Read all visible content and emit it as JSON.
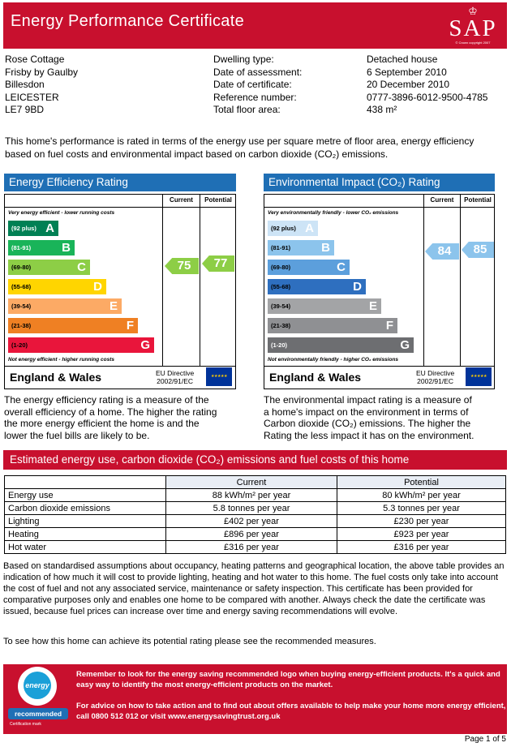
{
  "header": {
    "title": "Energy Performance Certificate",
    "logo_word": "SAP",
    "logo_copyright": "© Crown copyright 2007"
  },
  "address": [
    "Rose Cottage",
    "Frisby by Gaulby",
    "Billesdon",
    "LEICESTER",
    "LE7 9BD"
  ],
  "details": [
    {
      "label": "Dwelling type:",
      "value": "Detached house"
    },
    {
      "label": "Date of assessment:",
      "value": "6 September 2010"
    },
    {
      "label": "Date of certificate:",
      "value": "20 December 2010"
    },
    {
      "label": "Reference number:",
      "value": "0777-3896-6012-9500-4785"
    },
    {
      "label": "Total floor area:",
      "value": "438 m²"
    }
  ],
  "intro": "This home's performance is rated in terms of the energy use per square metre of floor area, energy efficiency based on fuel costs and environmental impact based on carbon dioxide (CO₂) emissions.",
  "efficiency": {
    "title": "Energy Efficiency Rating",
    "col_current": "Current",
    "col_potential": "Potential",
    "top_note": "Very energy efficient - lower running costs",
    "bottom_note": "Not energy efficient - higher running costs",
    "bands": [
      {
        "range": "(92 plus)",
        "letter": "A",
        "color": "#008054"
      },
      {
        "range": "(81-91)",
        "letter": "B",
        "color": "#19b459"
      },
      {
        "range": "(69-80)",
        "letter": "C",
        "color": "#8dce46"
      },
      {
        "range": "(55-68)",
        "letter": "D",
        "color": "#ffd500"
      },
      {
        "range": "(39-54)",
        "letter": "E",
        "color": "#fcaa65"
      },
      {
        "range": "(21-38)",
        "letter": "F",
        "color": "#ef8023"
      },
      {
        "range": "(1-20)",
        "letter": "G",
        "color": "#e9153b"
      }
    ],
    "current": "75",
    "potential": "77",
    "arrow_color": "#8dce46",
    "region": "England & Wales",
    "directive": [
      "EU Directive",
      "2002/91/EC"
    ],
    "description": [
      "The energy efficiency rating is a measure of the",
      "overall efficiency of a home. The higher the rating",
      "the more energy efficient the home is and the",
      "lower the fuel bills are likely to be."
    ]
  },
  "environmental": {
    "title": "Environmental Impact (CO₂) Rating",
    "col_current": "Current",
    "col_potential": "Potential",
    "top_note": "Very environmentally friendly - lower CO₂ emissions",
    "bottom_note": "Not environmentally friendly - higher CO₂ emissions",
    "bands": [
      {
        "range": "(92 plus)",
        "letter": "A",
        "color": "#cde4f6"
      },
      {
        "range": "(81-91)",
        "letter": "B",
        "color": "#8cc4ec"
      },
      {
        "range": "(69-80)",
        "letter": "C",
        "color": "#5c9fdc"
      },
      {
        "range": "(55-68)",
        "letter": "D",
        "color": "#2e6fbf"
      },
      {
        "range": "(39-54)",
        "letter": "E",
        "color": "#a3a4a6"
      },
      {
        "range": "(21-38)",
        "letter": "F",
        "color": "#8f9093"
      },
      {
        "range": "(1-20)",
        "letter": "G",
        "color": "#6d6e71"
      }
    ],
    "current": "84",
    "potential": "85",
    "arrow_color": "#8cc4ec",
    "region": "England & Wales",
    "directive": [
      "EU Directive",
      "2002/91/EC"
    ],
    "description": [
      "The environmental impact rating is a measure of",
      "a home's impact on the environment in terms of",
      "Carbon dioxide (CO₂) emissions. The higher the",
      "Rating the less impact it has on the environment."
    ]
  },
  "estimates": {
    "title": "Estimated energy use, carbon dioxide (CO₂) emissions and fuel costs of this home",
    "col_current": "Current",
    "col_potential": "Potential",
    "rows": [
      {
        "label": "Energy use",
        "current": "88 kWh/m² per year",
        "potential": "80 kWh/m² per year"
      },
      {
        "label": "Carbon dioxide emissions",
        "current": "5.8 tonnes per year",
        "potential": "5.3 tonnes per year"
      },
      {
        "label": "Lighting",
        "current": "£402 per year",
        "potential": "£230 per year"
      },
      {
        "label": "Heating",
        "current": "£896 per year",
        "potential": "£923 per year"
      },
      {
        "label": "Hot water",
        "current": "£316 per year",
        "potential": "£316 per year"
      }
    ]
  },
  "assumptions": "Based on standardised assumptions about occupancy, heating patterns and geographical location, the above table provides an indication of how much it will cost to provide lighting, heating and hot water to this home. The fuel costs only take into account the cost of fuel and not any associated service, maintenance or safety inspection. This certificate has been provided for comparative purposes only and enables one home to be compared with another. Always check the date the certificate was issued, because fuel prices can increase over time and energy saving recommendations will evolve.",
  "advice": "To see how this home can achieve its potential rating please see the recommended measures.",
  "footer": {
    "logo_text": "energy saving",
    "logo_label": "recommended",
    "logo_caption": "Certification mark",
    "line1": "Remember to look for the energy saving recommended logo when buying energy-efficient products. It's a quick and easy way to identify the most energy-efficient products on the market.",
    "line2": "For advice on how to take action and to find out about offers available to help make your home more energy efficient, call 0800 512 012 or visit www.energysavingtrust.org.uk"
  },
  "page": "Page 1 of 5"
}
